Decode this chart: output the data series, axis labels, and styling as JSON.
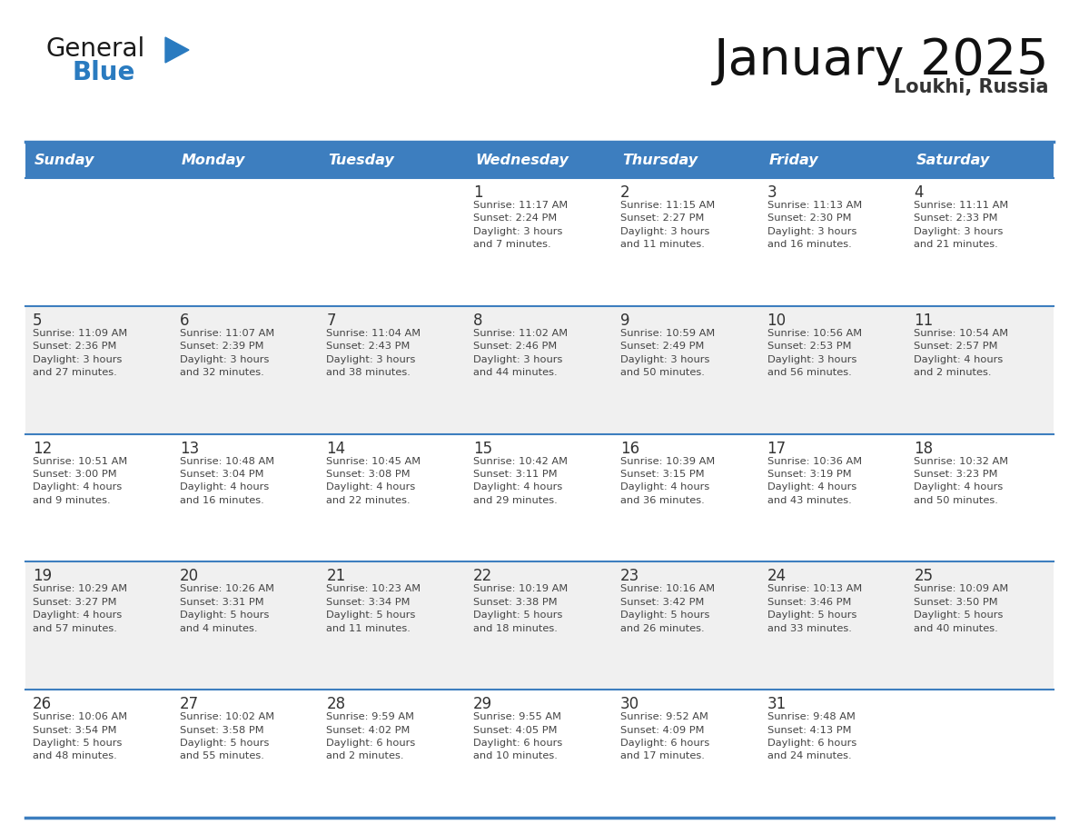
{
  "title": "January 2025",
  "subtitle": "Loukhi, Russia",
  "header_bg": "#3d7ebf",
  "header_text": "#ffffff",
  "row_bg_even": "#ffffff",
  "row_bg_odd": "#f0f0f0",
  "separator_color": "#3d7ebf",
  "day_text_color": "#333333",
  "cell_text_color": "#444444",
  "logo_general_color": "#1a1a1a",
  "logo_blue_color": "#2a7bc0",
  "logo_triangle_color": "#2a7bc0",
  "days_of_week": [
    "Sunday",
    "Monday",
    "Tuesday",
    "Wednesday",
    "Thursday",
    "Friday",
    "Saturday"
  ],
  "calendar": [
    [
      {
        "day": "",
        "info": ""
      },
      {
        "day": "",
        "info": ""
      },
      {
        "day": "",
        "info": ""
      },
      {
        "day": "1",
        "info": "Sunrise: 11:17 AM\nSunset: 2:24 PM\nDaylight: 3 hours\nand 7 minutes."
      },
      {
        "day": "2",
        "info": "Sunrise: 11:15 AM\nSunset: 2:27 PM\nDaylight: 3 hours\nand 11 minutes."
      },
      {
        "day": "3",
        "info": "Sunrise: 11:13 AM\nSunset: 2:30 PM\nDaylight: 3 hours\nand 16 minutes."
      },
      {
        "day": "4",
        "info": "Sunrise: 11:11 AM\nSunset: 2:33 PM\nDaylight: 3 hours\nand 21 minutes."
      }
    ],
    [
      {
        "day": "5",
        "info": "Sunrise: 11:09 AM\nSunset: 2:36 PM\nDaylight: 3 hours\nand 27 minutes."
      },
      {
        "day": "6",
        "info": "Sunrise: 11:07 AM\nSunset: 2:39 PM\nDaylight: 3 hours\nand 32 minutes."
      },
      {
        "day": "7",
        "info": "Sunrise: 11:04 AM\nSunset: 2:43 PM\nDaylight: 3 hours\nand 38 minutes."
      },
      {
        "day": "8",
        "info": "Sunrise: 11:02 AM\nSunset: 2:46 PM\nDaylight: 3 hours\nand 44 minutes."
      },
      {
        "day": "9",
        "info": "Sunrise: 10:59 AM\nSunset: 2:49 PM\nDaylight: 3 hours\nand 50 minutes."
      },
      {
        "day": "10",
        "info": "Sunrise: 10:56 AM\nSunset: 2:53 PM\nDaylight: 3 hours\nand 56 minutes."
      },
      {
        "day": "11",
        "info": "Sunrise: 10:54 AM\nSunset: 2:57 PM\nDaylight: 4 hours\nand 2 minutes."
      }
    ],
    [
      {
        "day": "12",
        "info": "Sunrise: 10:51 AM\nSunset: 3:00 PM\nDaylight: 4 hours\nand 9 minutes."
      },
      {
        "day": "13",
        "info": "Sunrise: 10:48 AM\nSunset: 3:04 PM\nDaylight: 4 hours\nand 16 minutes."
      },
      {
        "day": "14",
        "info": "Sunrise: 10:45 AM\nSunset: 3:08 PM\nDaylight: 4 hours\nand 22 minutes."
      },
      {
        "day": "15",
        "info": "Sunrise: 10:42 AM\nSunset: 3:11 PM\nDaylight: 4 hours\nand 29 minutes."
      },
      {
        "day": "16",
        "info": "Sunrise: 10:39 AM\nSunset: 3:15 PM\nDaylight: 4 hours\nand 36 minutes."
      },
      {
        "day": "17",
        "info": "Sunrise: 10:36 AM\nSunset: 3:19 PM\nDaylight: 4 hours\nand 43 minutes."
      },
      {
        "day": "18",
        "info": "Sunrise: 10:32 AM\nSunset: 3:23 PM\nDaylight: 4 hours\nand 50 minutes."
      }
    ],
    [
      {
        "day": "19",
        "info": "Sunrise: 10:29 AM\nSunset: 3:27 PM\nDaylight: 4 hours\nand 57 minutes."
      },
      {
        "day": "20",
        "info": "Sunrise: 10:26 AM\nSunset: 3:31 PM\nDaylight: 5 hours\nand 4 minutes."
      },
      {
        "day": "21",
        "info": "Sunrise: 10:23 AM\nSunset: 3:34 PM\nDaylight: 5 hours\nand 11 minutes."
      },
      {
        "day": "22",
        "info": "Sunrise: 10:19 AM\nSunset: 3:38 PM\nDaylight: 5 hours\nand 18 minutes."
      },
      {
        "day": "23",
        "info": "Sunrise: 10:16 AM\nSunset: 3:42 PM\nDaylight: 5 hours\nand 26 minutes."
      },
      {
        "day": "24",
        "info": "Sunrise: 10:13 AM\nSunset: 3:46 PM\nDaylight: 5 hours\nand 33 minutes."
      },
      {
        "day": "25",
        "info": "Sunrise: 10:09 AM\nSunset: 3:50 PM\nDaylight: 5 hours\nand 40 minutes."
      }
    ],
    [
      {
        "day": "26",
        "info": "Sunrise: 10:06 AM\nSunset: 3:54 PM\nDaylight: 5 hours\nand 48 minutes."
      },
      {
        "day": "27",
        "info": "Sunrise: 10:02 AM\nSunset: 3:58 PM\nDaylight: 5 hours\nand 55 minutes."
      },
      {
        "day": "28",
        "info": "Sunrise: 9:59 AM\nSunset: 4:02 PM\nDaylight: 6 hours\nand 2 minutes."
      },
      {
        "day": "29",
        "info": "Sunrise: 9:55 AM\nSunset: 4:05 PM\nDaylight: 6 hours\nand 10 minutes."
      },
      {
        "day": "30",
        "info": "Sunrise: 9:52 AM\nSunset: 4:09 PM\nDaylight: 6 hours\nand 17 minutes."
      },
      {
        "day": "31",
        "info": "Sunrise: 9:48 AM\nSunset: 4:13 PM\nDaylight: 6 hours\nand 24 minutes."
      },
      {
        "day": "",
        "info": ""
      }
    ]
  ]
}
